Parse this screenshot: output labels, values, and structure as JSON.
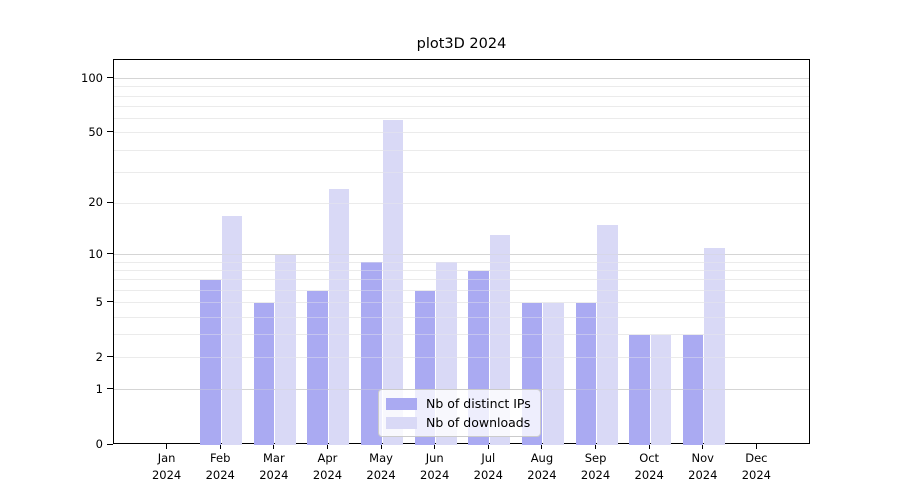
{
  "title": "plot3D 2024",
  "colors": {
    "distinct_ips": "#aaaaf2",
    "downloads": "#d9d9f6",
    "grid_minor": "#ebebeb",
    "grid_major": "#d5d5d5",
    "axis": "#000000",
    "legend_border": "#cbcbcb"
  },
  "legend": {
    "items": [
      {
        "label": "Nb of distinct IPs",
        "color_key": "distinct_ips"
      },
      {
        "label": "Nb of downloads",
        "color_key": "downloads"
      }
    ]
  },
  "y_axis": {
    "scale": "log1p",
    "tick_labels": [
      "0",
      "1",
      "2",
      "5",
      "10",
      "20",
      "50",
      "100"
    ],
    "tick_values": [
      0,
      1,
      2,
      5,
      10,
      20,
      50,
      100
    ],
    "minor_gridlines": [
      2,
      3,
      4,
      5,
      6,
      7,
      8,
      9,
      20,
      30,
      40,
      50,
      60,
      70,
      80,
      90
    ],
    "major_gridlines": [
      1,
      10,
      100
    ]
  },
  "x_axis": {
    "months": [
      {
        "label": "Jan",
        "year": "2024"
      },
      {
        "label": "Feb",
        "year": "2024"
      },
      {
        "label": "Mar",
        "year": "2024"
      },
      {
        "label": "Apr",
        "year": "2024"
      },
      {
        "label": "May",
        "year": "2024"
      },
      {
        "label": "Jun",
        "year": "2024"
      },
      {
        "label": "Jul",
        "year": "2024"
      },
      {
        "label": "Aug",
        "year": "2024"
      },
      {
        "label": "Sep",
        "year": "2024"
      },
      {
        "label": "Oct",
        "year": "2024"
      },
      {
        "label": "Nov",
        "year": "2024"
      },
      {
        "label": "Dec",
        "year": "2024"
      }
    ]
  },
  "chart_data": {
    "type": "bar",
    "title": "plot3D 2024",
    "categories": [
      "Jan 2024",
      "Feb 2024",
      "Mar 2024",
      "Apr 2024",
      "May 2024",
      "Jun 2024",
      "Jul 2024",
      "Aug 2024",
      "Sep 2024",
      "Oct 2024",
      "Nov 2024",
      "Dec 2024"
    ],
    "series": [
      {
        "name": "Nb of distinct IPs",
        "color_key": "distinct_ips",
        "values": [
          0,
          7,
          5,
          6,
          9,
          6,
          8,
          5,
          5,
          3,
          3,
          0
        ]
      },
      {
        "name": "Nb of downloads",
        "color_key": "downloads",
        "values": [
          0,
          17,
          10,
          24,
          59,
          9,
          13,
          5,
          15,
          3,
          11,
          0
        ]
      }
    ],
    "xlabel": "",
    "ylabel": "",
    "y_scale": "log1p",
    "y_ticks": [
      0,
      1,
      2,
      5,
      10,
      20,
      50,
      100
    ],
    "ylim": [
      0,
      127
    ],
    "grid": true,
    "legend_position": "lower center"
  }
}
